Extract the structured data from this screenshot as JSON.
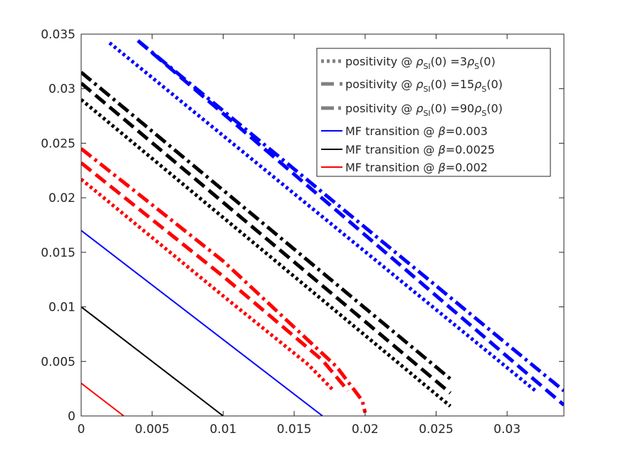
{
  "chart_data": {
    "type": "line",
    "title": "",
    "xlabel": "",
    "ylabel": "",
    "xlim": [
      0,
      0.034
    ],
    "ylim": [
      0,
      0.035
    ],
    "xticks": [
      0,
      0.005,
      0.01,
      0.015,
      0.02,
      0.025,
      0.03
    ],
    "xtick_labels": [
      "0",
      "0.005",
      "0.01",
      "0.015",
      "0.02",
      "0.025",
      "0.03"
    ],
    "yticks": [
      0,
      0.005,
      0.01,
      0.015,
      0.02,
      0.025,
      0.03,
      0.035
    ],
    "ytick_labels": [
      "0",
      "0.005",
      "0.01",
      "0.015",
      "0.02",
      "0.025",
      "0.03",
      "0.035"
    ],
    "grid": false,
    "legend_position": "top-right",
    "legend": [
      {
        "prefix": "positivity @ ",
        "main": "ρ",
        "sub": "SI",
        "mid": "(0) =3",
        "main2": "ρ",
        "sub2": "S",
        "suffix": "(0)",
        "style": "dotted",
        "color": "#808080"
      },
      {
        "prefix": "positivity @ ",
        "main": "ρ",
        "sub": "SI",
        "mid": "(0) =15",
        "main2": "ρ",
        "sub2": "S",
        "suffix": "(0)",
        "style": "dashed",
        "color": "#808080"
      },
      {
        "prefix": "positivity @ ",
        "main": "ρ",
        "sub": "SI",
        "mid": "(0) =90",
        "main2": "ρ",
        "sub2": "S",
        "suffix": "(0)",
        "style": "dashdot",
        "color": "#808080"
      },
      {
        "prefix": "MF transition @ ",
        "main": "β",
        "sub": "",
        "mid": "=0.003",
        "main2": "",
        "sub2": "",
        "suffix": "",
        "style": "solid",
        "color": "#0000ff"
      },
      {
        "prefix": "MF transition @ ",
        "main": "β",
        "sub": "",
        "mid": "=0.0025",
        "main2": "",
        "sub2": "",
        "suffix": "",
        "style": "solid",
        "color": "#000000"
      },
      {
        "prefix": "MF transition @ ",
        "main": "β",
        "sub": "",
        "mid": "=0.002",
        "main2": "",
        "sub2": "",
        "suffix": "",
        "style": "solid",
        "color": "#ff0000"
      }
    ],
    "series": [
      {
        "color": "#0000ff",
        "style": "solid",
        "x": [
          0,
          0.017
        ],
        "y": [
          0.017,
          0
        ]
      },
      {
        "color": "#000000",
        "style": "solid",
        "x": [
          0,
          0.01
        ],
        "y": [
          0.01,
          0
        ]
      },
      {
        "color": "#ff0000",
        "style": "solid",
        "x": [
          0,
          0.003
        ],
        "y": [
          0.003,
          0
        ]
      },
      {
        "color": "#0000ff",
        "style": "dotted",
        "x": [
          0.002,
          0.032
        ],
        "y": [
          0.0342,
          0.0023
        ]
      },
      {
        "color": "#0000ff",
        "style": "dashed",
        "x": [
          0.004,
          0.034
        ],
        "y": [
          0.0344,
          0.001
        ]
      },
      {
        "color": "#0000ff",
        "style": "dashdot",
        "x": [
          0.004,
          0.034
        ],
        "y": [
          0.0344,
          0.0023
        ]
      },
      {
        "color": "#000000",
        "style": "dotted",
        "x": [
          0,
          0.026
        ],
        "y": [
          0.029,
          0.0009
        ]
      },
      {
        "color": "#000000",
        "style": "dashed",
        "x": [
          0,
          0.026
        ],
        "y": [
          0.0305,
          0.0021
        ]
      },
      {
        "color": "#000000",
        "style": "dashdot",
        "x": [
          0,
          0.026
        ],
        "y": [
          0.0315,
          0.0034
        ]
      },
      {
        "color": "#ff0000",
        "style": "dotted",
        "x": [
          0,
          0.01,
          0.016,
          0.0178
        ],
        "y": [
          0.0217,
          0.011,
          0.0047,
          0.0023
        ]
      },
      {
        "color": "#ff0000",
        "style": "dashed",
        "x": [
          0,
          0.01,
          0.017,
          0.0188
        ],
        "y": [
          0.0232,
          0.0128,
          0.0051,
          0.0023
        ]
      },
      {
        "color": "#ff0000",
        "style": "dashdot",
        "x": [
          0,
          0.01,
          0.018,
          0.0198,
          0.02
        ],
        "y": [
          0.0245,
          0.0142,
          0.0045,
          0.0014,
          0.0003
        ]
      }
    ]
  }
}
